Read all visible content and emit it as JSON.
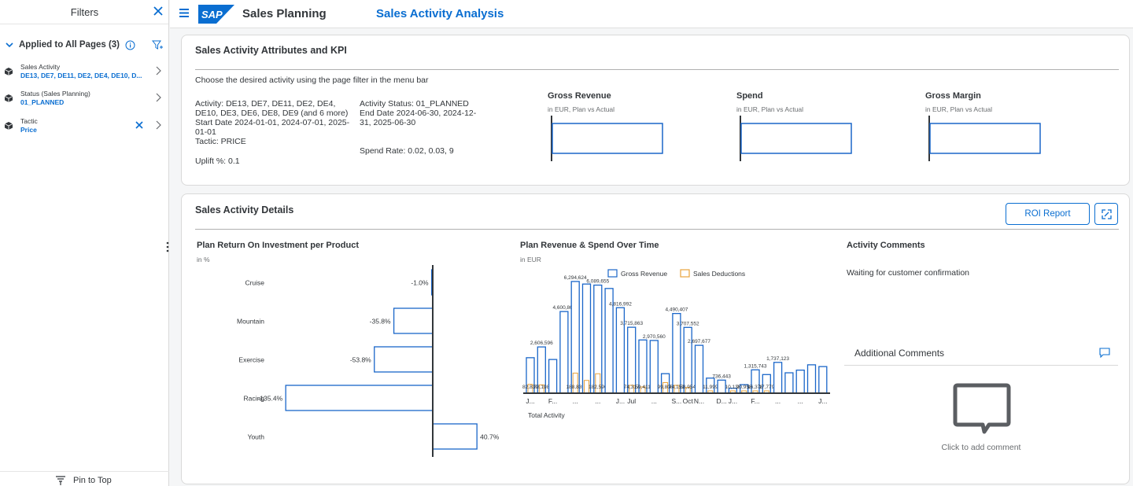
{
  "filters": {
    "title": "Filters",
    "applied_label": "Applied to All Pages (3)",
    "items": [
      {
        "name": "Sales Activity",
        "value": "DE13, DE7, DE11, DE2, DE4, DE10, D..."
      },
      {
        "name": "Status (Sales Planning)",
        "value": "01_PLANNED"
      },
      {
        "name": "Tactic",
        "value": "Price"
      }
    ],
    "pin_label": "Pin to Top"
  },
  "header": {
    "logo_text": "SAP",
    "app_title": "Sales Planning",
    "page_title": "Sales Activity Analysis"
  },
  "attributes_card": {
    "title": "Sales Activity Attributes and KPI",
    "instruction": "Choose the desired activity using the page filter in the menu bar",
    "left_lines": [
      "Activity: DE13, DE7, DE11, DE2, DE4,",
      "DE10, DE3, DE6, DE8, DE9 (and 6 more)",
      "Start Date 2024-01-01, 2024-07-01, 2025-",
      "01-01",
      "Tactic: PRICE"
    ],
    "uplift": "Uplift %: 0.1",
    "mid_lines": [
      "Activity Status: 01_PLANNED",
      "End Date 2024-06-30, 2024-12-",
      "31, 2025-06-30"
    ],
    "spend_rate": "Spend Rate: 0.02, 0.03, 9",
    "kpis": [
      {
        "title": "Gross Revenue",
        "subtitle": "in EUR, Plan vs Actual"
      },
      {
        "title": "Spend",
        "subtitle": "in EUR, Plan vs Actual"
      },
      {
        "title": "Gross Margin",
        "subtitle": "in EUR, Plan vs Actual"
      }
    ]
  },
  "details_card": {
    "title": "Sales Activity Details",
    "roi_button": "ROI Report",
    "roi_chart": {
      "title": "Plan Return On Investment per Product",
      "subtitle": "in %"
    },
    "revenue_chart": {
      "title": "Plan Revenue & Spend Over Time",
      "subtitle": "in EUR"
    },
    "comments": {
      "title": "Activity Comments",
      "text": "Waiting for customer confirmation",
      "additional_title": "Additional Comments",
      "click_to_add": "Click to add comment"
    }
  },
  "colors": {
    "accent": "#0a6ed1",
    "bar_blue": "#1a66c9",
    "bar_orange": "#e8a33d",
    "logo_blue": "#0a6ed1"
  },
  "chart_data": [
    {
      "type": "bar",
      "orientation": "horizontal",
      "title": "Plan Return On Investment per Product",
      "subtitle": "in %",
      "categories": [
        "Cruise",
        "Mountain",
        "Exercise",
        "Racing",
        "Youth"
      ],
      "values": [
        -1.0,
        -35.8,
        -53.8,
        -135.4,
        40.7
      ],
      "labels": [
        "-1.0%",
        "-35.8%",
        "-53.8%",
        "-135.4%",
        "40.7%"
      ],
      "xlim": [
        -150,
        60
      ]
    },
    {
      "type": "bar",
      "title": "Plan Revenue & Spend Over Time",
      "subtitle": "in EUR",
      "xlabel": "Total Activity",
      "legend": [
        "Gross Revenue",
        "Sales Deductions"
      ],
      "legend_position": "top",
      "ylim": [
        0,
        7000000
      ],
      "categories": [
        "J...",
        "",
        "F...",
        "",
        "...",
        "",
        "...",
        "",
        "J...",
        "Jul",
        "",
        "...",
        "",
        "S...",
        "Oct",
        "N...",
        "",
        "D...",
        "J...",
        "",
        "F...",
        "",
        "...",
        "",
        "...",
        "",
        "J..."
      ],
      "series": [
        {
          "name": "Gross Revenue",
          "values": [
            2000000,
            2606596,
            1900000,
            4600861,
            6294624,
            6150000,
            6089655,
            5900000,
            4816992,
            3715863,
            3000000,
            2970560,
            1100000,
            4490407,
            3707552,
            2697677,
            850000,
            736443,
            280000,
            480000,
            1315743,
            1050000,
            1737123,
            1150000,
            1300000,
            1600000,
            1500000
          ],
          "labels": [
            "",
            "2,606,596",
            "",
            "4,600,861",
            "6,294,624",
            "",
            "6,089,655",
            "",
            "4,816,992",
            "3,715,863",
            "",
            "2,970,560",
            "",
            "4,490,407",
            "3,707,552",
            "2,697,677",
            "",
            "736,443",
            "",
            "",
            "1,315,743",
            "",
            "1,737,123",
            "",
            "",
            "",
            ""
          ]
        },
        {
          "name": "Sales Deductions",
          "values": [
            82839,
            78198,
            0,
            0,
            188839,
            120000,
            182590,
            0,
            0,
            74317,
            59411,
            0,
            99808,
            74151,
            53954,
            0,
            11999,
            0,
            10138,
            20958,
            16378,
            17779,
            0,
            0,
            0,
            0,
            0
          ],
          "labels": [
            "82,839",
            "78,198",
            "",
            "",
            "188,839",
            "",
            "182,590",
            "",
            "",
            "74,317",
            "59,411",
            "",
            "99,808",
            "74,151",
            "53,954",
            "",
            "11,999",
            "",
            "10,138",
            "20,958",
            "16,378",
            "17,779",
            "",
            "",
            "",
            "",
            ""
          ]
        }
      ]
    }
  ]
}
